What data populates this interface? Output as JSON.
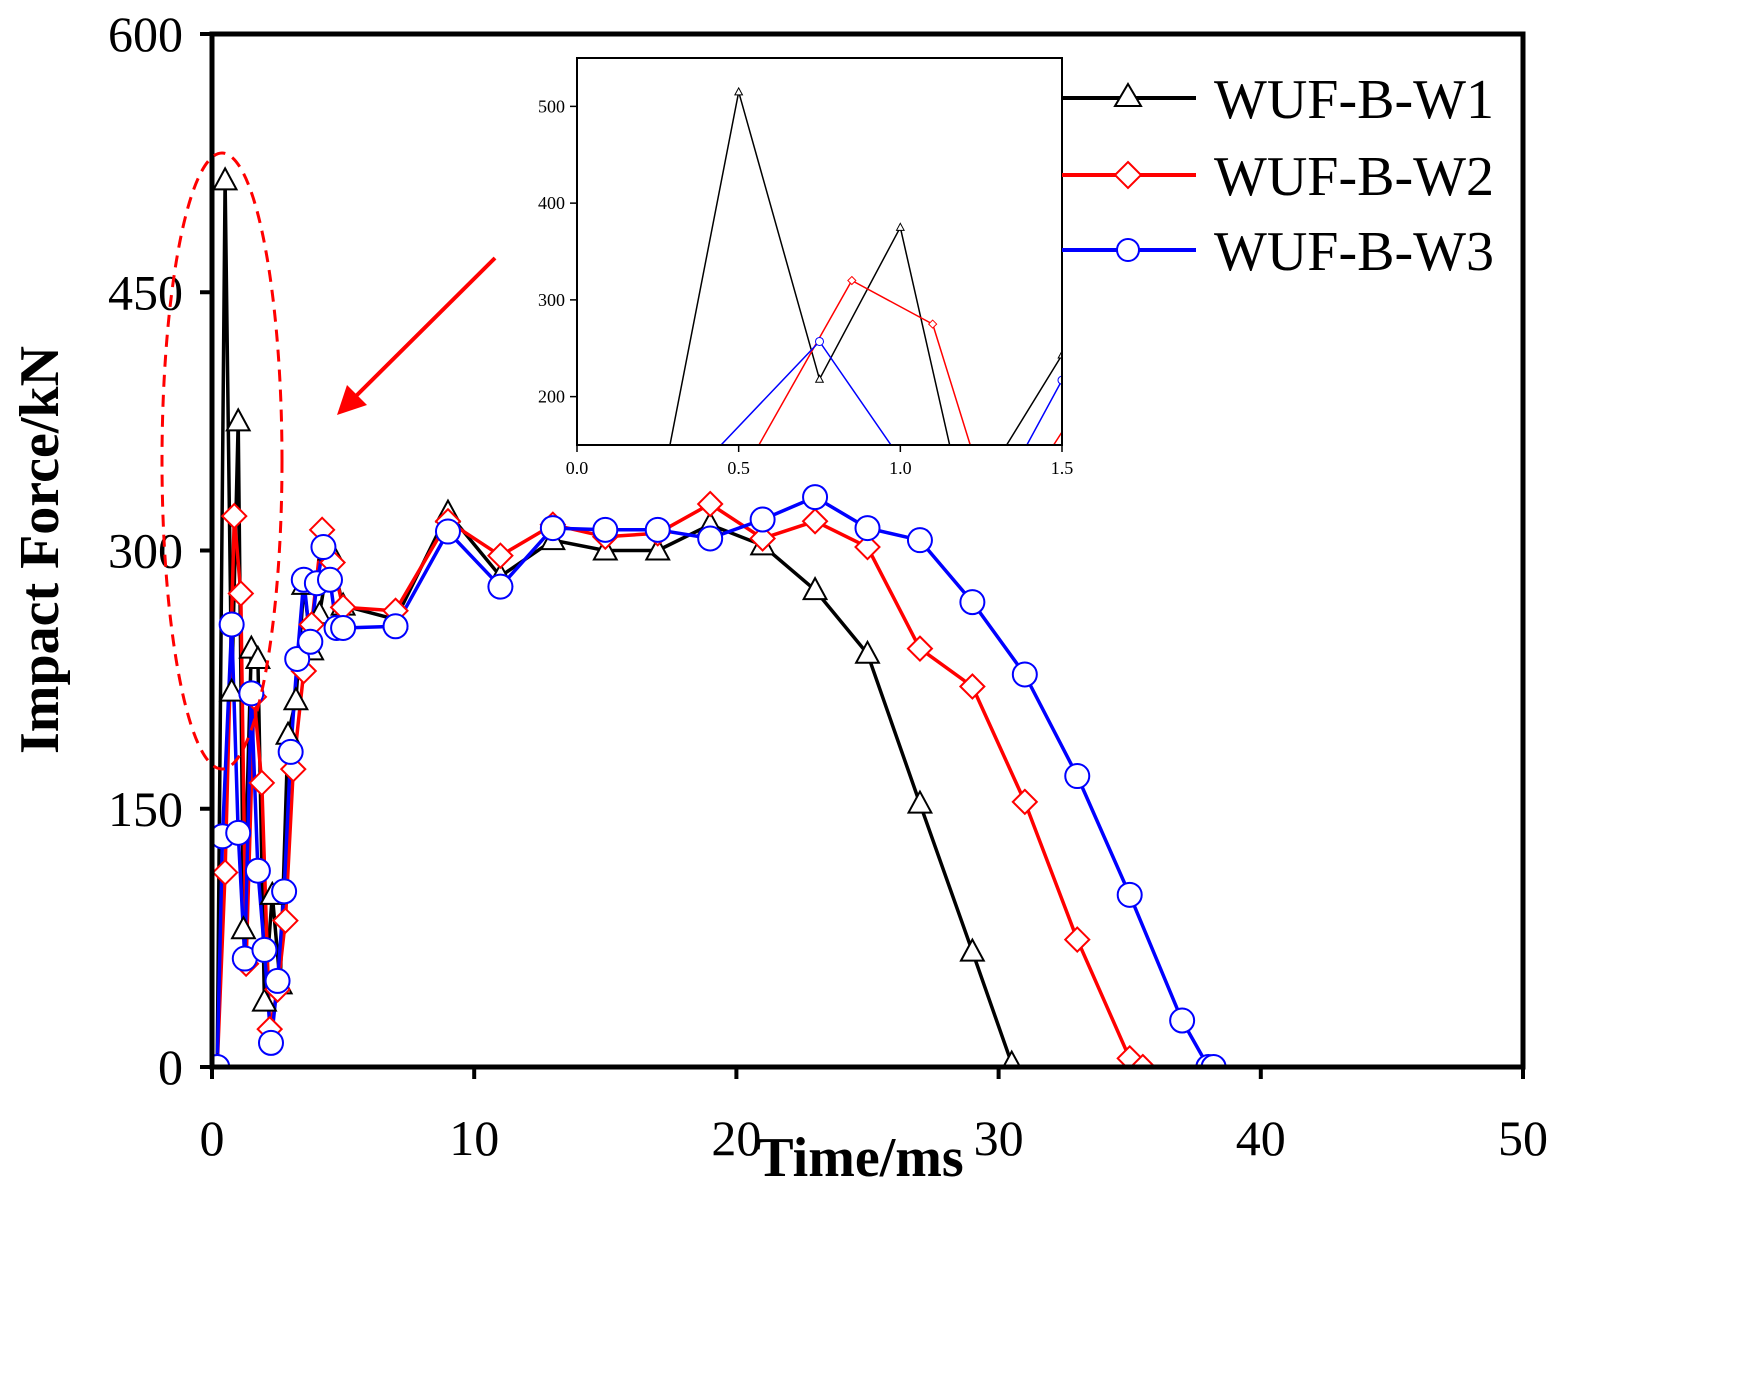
{
  "chart_data": {
    "type": "line",
    "title": "",
    "xlabel": "Time/ms",
    "ylabel": "Impact Force/kN",
    "xlim": [
      0,
      50
    ],
    "ylim": [
      0,
      600
    ],
    "xticks": [
      "0",
      "10",
      "20",
      "30",
      "40",
      "50"
    ],
    "yticks": [
      "0",
      "150",
      "300",
      "450",
      "600"
    ],
    "legend_position": "top-right",
    "series": [
      {
        "name": "WUF-B-W1",
        "color": "#000000",
        "marker": "triangle",
        "x": [
          0.2,
          0.5,
          0.75,
          1.0,
          1.2,
          1.5,
          1.75,
          2.0,
          2.3,
          2.6,
          2.9,
          3.2,
          3.5,
          3.8,
          4.1,
          4.5,
          5.0,
          7.0,
          9.0,
          11.0,
          13.0,
          15.0,
          17.0,
          19.0,
          21.0,
          23.0,
          25.0,
          27.0,
          29.0,
          30.5
        ],
        "y": [
          0,
          515,
          218,
          375,
          80,
          243,
          237,
          38,
          100,
          48,
          193,
          213,
          280,
          242,
          263,
          300,
          268,
          260,
          322,
          285,
          306,
          300,
          300,
          315,
          303,
          277,
          240,
          153,
          67,
          2
        ]
      },
      {
        "name": "WUF-B-W2",
        "color": "#ff0000",
        "marker": "diamond",
        "x": [
          0.2,
          0.5,
          0.85,
          1.1,
          1.3,
          1.6,
          1.9,
          2.2,
          2.5,
          2.8,
          3.1,
          3.5,
          3.8,
          4.2,
          4.6,
          5.0,
          7.0,
          9.0,
          11.0,
          13.0,
          15.0,
          17.0,
          19.0,
          21.0,
          23.0,
          25.0,
          27.0,
          29.0,
          31.0,
          33.0,
          35.0,
          35.5
        ],
        "y": [
          0,
          113,
          320,
          275,
          60,
          215,
          165,
          22,
          45,
          85,
          173,
          230,
          257,
          312,
          293,
          267,
          265,
          317,
          297,
          315,
          308,
          310,
          327,
          307,
          317,
          302,
          243,
          221,
          154,
          74,
          5,
          0
        ],
        "y_fix": true
      },
      {
        "name": "WUF-B-W3",
        "color": "#0000ff",
        "marker": "circle",
        "x": [
          0.2,
          0.4,
          0.75,
          1.0,
          1.25,
          1.5,
          1.75,
          2.0,
          2.25,
          2.5,
          2.75,
          3.0,
          3.25,
          3.5,
          3.75,
          4.0,
          4.25,
          4.5,
          4.75,
          5.0,
          7.0,
          9.0,
          11.0,
          13.0,
          15.0,
          17.0,
          19.0,
          21.0,
          23.0,
          25.0,
          27.0,
          29.0,
          31.0,
          33.0,
          35.0,
          37.0,
          38.0,
          38.2
        ],
        "y": [
          0,
          134,
          257,
          136,
          63,
          217,
          114,
          68,
          14,
          50,
          102,
          183,
          237,
          283,
          247,
          281,
          302,
          283,
          255,
          255,
          256,
          311,
          279,
          313,
          312,
          312,
          307,
          318,
          331,
          313,
          306,
          270,
          228,
          169,
          100,
          27,
          0,
          0
        ]
      }
    ],
    "inset": {
      "xlim": [
        0,
        1.5
      ],
      "ylim": [
        150,
        550
      ],
      "xticks": [
        "0.0",
        "0.5",
        "1.0",
        "1.5"
      ],
      "yticks": [
        "200",
        "300",
        "400",
        "500"
      ]
    }
  }
}
